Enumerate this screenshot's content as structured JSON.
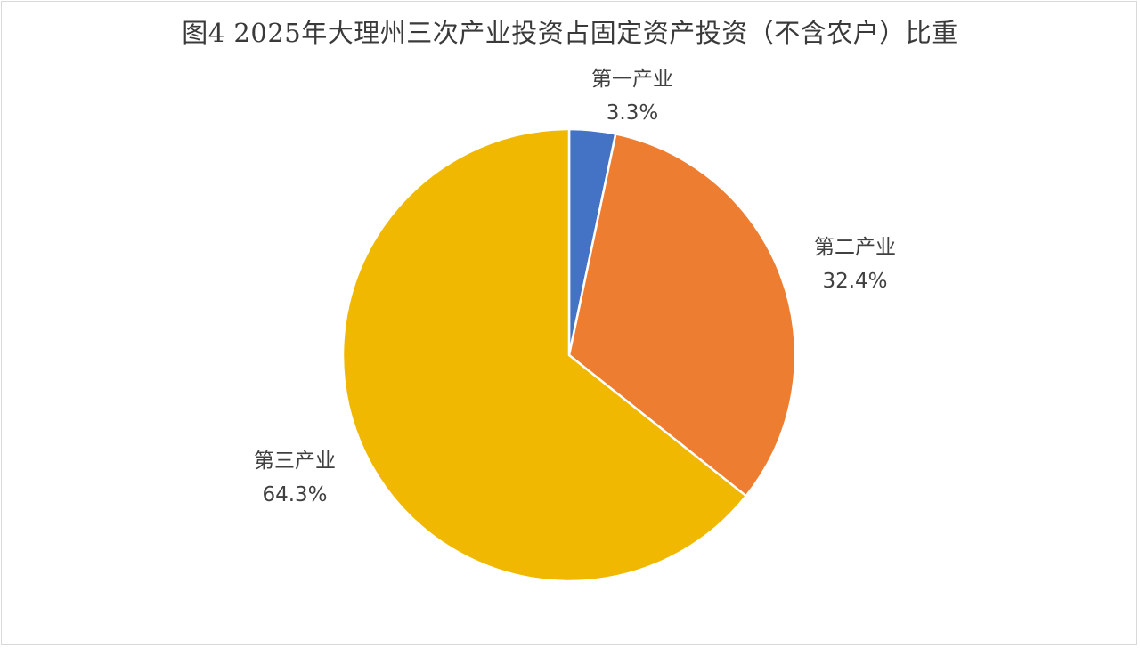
{
  "chart_data": {
    "type": "pie",
    "title": "图4 2025年大理州三次产业投资占固定资产投资（不含农户）比重",
    "categories": [
      "第一产业",
      "第二产业",
      "第三产业"
    ],
    "values": [
      3.3,
      32.4,
      64.3
    ],
    "value_labels": [
      "3.3%",
      "32.4%",
      "64.3%"
    ],
    "unit": "%",
    "colors": [
      "#4472c4",
      "#ed7d31",
      "#f0b800"
    ],
    "start_angle_deg": 0,
    "direction": "clockwise",
    "legend": "none",
    "label_placement": "outside"
  }
}
